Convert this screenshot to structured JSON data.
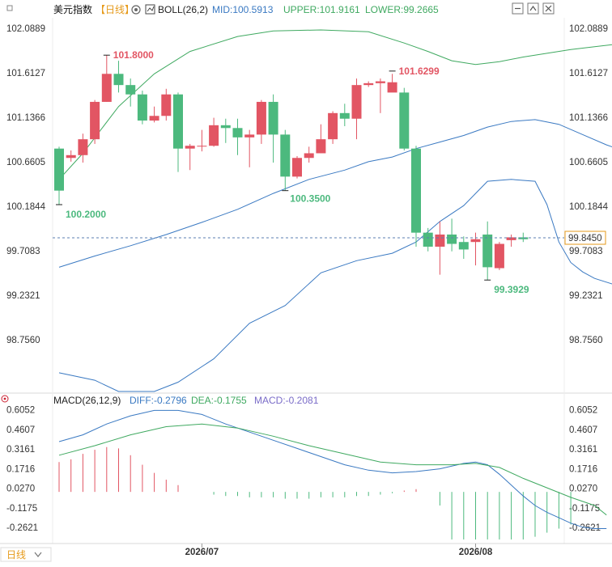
{
  "header": {
    "symbol": "美元指数",
    "period": "【日线】",
    "indicator": "BOLL(26,2)",
    "mid": "MID:100.5913",
    "upper": "UPPER:101.9161",
    "lower": "LOWER:99.2665"
  },
  "macd_header": {
    "indicator": "MACD(26,12,9)",
    "diff": "DIFF:-0.2796",
    "dea": "DEA:-0.1755",
    "macd": "MACD:-0.2081"
  },
  "current_price": "99.8450",
  "period_button": "日线",
  "colors": {
    "up": "#e25563",
    "down": "#4cb97e",
    "boll": "#3a79c2",
    "boll_band": "#3fa960",
    "diff": "#3a79c2",
    "dea": "#3fa960"
  },
  "chart_data": [
    {
      "type": "candlestick",
      "y_ticks": [
        "102.0889",
        "101.6127",
        "101.1366",
        "100.6605",
        "100.1844",
        "99.7083",
        "99.2321",
        "98.7560"
      ],
      "ylim": [
        98.2,
        102.2
      ],
      "annotations": [
        {
          "label": "101.8000",
          "value": 101.8
        },
        {
          "label": "100.2000",
          "value": 100.2
        },
        {
          "label": "100.3500",
          "value": 100.35
        },
        {
          "label": "101.6299",
          "value": 101.6299
        },
        {
          "label": "99.3929",
          "value": 99.3929
        }
      ],
      "candles": [
        [
          100.8,
          100.35,
          100.82,
          100.2
        ],
        [
          100.7,
          100.73,
          100.78,
          100.66
        ],
        [
          100.73,
          100.9,
          100.96,
          100.65
        ],
        [
          100.9,
          101.3,
          101.32,
          100.85
        ],
        [
          101.3,
          101.6,
          101.8,
          101.3
        ],
        [
          101.6,
          101.48,
          101.74,
          101.4
        ],
        [
          101.48,
          101.38,
          101.55,
          101.25
        ],
        [
          101.38,
          101.1,
          101.42,
          101.06
        ],
        [
          101.1,
          101.15,
          101.25,
          101.08
        ],
        [
          101.15,
          101.38,
          101.44,
          101.1
        ],
        [
          101.38,
          100.8,
          101.4,
          100.55
        ],
        [
          100.8,
          100.83,
          100.85,
          100.57
        ],
        [
          100.83,
          100.83,
          101.0,
          100.77
        ],
        [
          100.83,
          101.05,
          101.13,
          100.82
        ],
        [
          101.05,
          101.02,
          101.12,
          100.86
        ],
        [
          101.02,
          100.92,
          101.12,
          100.73
        ],
        [
          100.92,
          100.95,
          101.0,
          100.6
        ],
        [
          100.95,
          101.3,
          101.32,
          100.85
        ],
        [
          101.3,
          100.95,
          101.38,
          100.65
        ],
        [
          100.95,
          100.5,
          101.0,
          100.35
        ],
        [
          100.5,
          100.7,
          100.72,
          100.48
        ],
        [
          100.7,
          100.75,
          100.82,
          100.65
        ],
        [
          100.75,
          100.9,
          101.06,
          100.75
        ],
        [
          100.9,
          101.18,
          101.2,
          100.85
        ],
        [
          101.18,
          101.12,
          101.28,
          101.04
        ],
        [
          101.12,
          101.48,
          101.55,
          100.9
        ],
        [
          101.48,
          101.5,
          101.52,
          101.46
        ],
        [
          101.5,
          101.52,
          101.55,
          101.18
        ],
        [
          101.4,
          101.51,
          101.6,
          101.45
        ],
        [
          101.4,
          100.8,
          101.45,
          100.78
        ],
        [
          100.8,
          99.9,
          100.83,
          99.75
        ],
        [
          99.9,
          99.75,
          99.95,
          99.7
        ],
        [
          99.75,
          99.88,
          100.02,
          99.45
        ],
        [
          99.88,
          99.78,
          100.05,
          99.7
        ],
        [
          99.8,
          99.72,
          99.86,
          99.62
        ],
        [
          99.8,
          99.83,
          99.9,
          99.55
        ],
        [
          99.88,
          99.53,
          100.02,
          99.39
        ],
        [
          99.52,
          99.78,
          99.8,
          99.5
        ],
        [
          99.82,
          99.85,
          99.88,
          99.75
        ],
        [
          99.85,
          99.83,
          99.9,
          99.8
        ]
      ],
      "boll_mid": [
        [
          0,
          99.53
        ],
        [
          3,
          99.65
        ],
        [
          6,
          99.76
        ],
        [
          9,
          99.88
        ],
        [
          12,
          100.01
        ],
        [
          15,
          100.15
        ],
        [
          18,
          100.32
        ],
        [
          21,
          100.47
        ],
        [
          24,
          100.57
        ],
        [
          26,
          100.66
        ],
        [
          28,
          100.71
        ],
        [
          30,
          100.8
        ],
        [
          32,
          100.87
        ],
        [
          34,
          100.94
        ],
        [
          36,
          101.03
        ],
        [
          38,
          101.09
        ],
        [
          40,
          101.11
        ],
        [
          42,
          101.06
        ],
        [
          44,
          100.95
        ],
        [
          46,
          100.84
        ],
        [
          48,
          100.75
        ],
        [
          50,
          100.66
        ],
        [
          52,
          100.58
        ]
      ],
      "boll_upper": [
        [
          0,
          100.47
        ],
        [
          2,
          100.75
        ],
        [
          5,
          101.25
        ],
        [
          8,
          101.6
        ],
        [
          11,
          101.84
        ],
        [
          15,
          102.0
        ],
        [
          18,
          102.06
        ],
        [
          22,
          102.07
        ],
        [
          26,
          102.05
        ],
        [
          29,
          101.93
        ],
        [
          31,
          101.84
        ],
        [
          33,
          101.74
        ],
        [
          35,
          101.7
        ],
        [
          37,
          101.73
        ],
        [
          39,
          101.78
        ],
        [
          41,
          101.82
        ],
        [
          43,
          101.86
        ],
        [
          45,
          101.89
        ],
        [
          47,
          101.92
        ],
        [
          49,
          101.94
        ],
        [
          51,
          101.95
        ],
        [
          53,
          101.91
        ]
      ],
      "boll_lower": [
        [
          0,
          98.4
        ],
        [
          3,
          98.32
        ],
        [
          5,
          98.2
        ],
        [
          8,
          98.2
        ],
        [
          10,
          98.3
        ],
        [
          13,
          98.55
        ],
        [
          16,
          98.93
        ],
        [
          19,
          99.12
        ],
        [
          22,
          99.47
        ],
        [
          25,
          99.6
        ],
        [
          28,
          99.68
        ],
        [
          30,
          99.8
        ],
        [
          32,
          100.02
        ],
        [
          34,
          100.19
        ],
        [
          36,
          100.45
        ],
        [
          38,
          100.47
        ],
        [
          40,
          100.45
        ],
        [
          41,
          100.2
        ],
        [
          42,
          99.8
        ],
        [
          43,
          99.58
        ],
        [
          44,
          99.48
        ],
        [
          45,
          99.41
        ],
        [
          47,
          99.33
        ],
        [
          49,
          99.27
        ]
      ]
    },
    {
      "type": "macd",
      "y_ticks": [
        "0.6052",
        "0.4607",
        "0.3161",
        "0.1716",
        "0.0270",
        "-0.1175",
        "-0.2621"
      ],
      "ylim": [
        -0.38,
        0.62
      ],
      "x_ticks": [
        "2026/07",
        "2026/08"
      ],
      "hist": [
        0.22,
        0.24,
        0.28,
        0.31,
        0.33,
        0.32,
        0.27,
        0.2,
        0.14,
        0.09,
        0.05,
        0,
        0,
        -0.02,
        -0.03,
        -0.03,
        -0.04,
        -0.04,
        -0.04,
        -0.05,
        -0.05,
        -0.05,
        -0.04,
        -0.04,
        -0.04,
        -0.03,
        -0.03,
        -0.02,
        -0.01,
        0.01,
        0.02,
        0,
        -0.1,
        -0.35,
        -0.35,
        -0.35,
        -0.35,
        -0.35,
        -0.35,
        -0.35,
        -0.33,
        -0.3,
        -0.27,
        -0.24
      ],
      "diff": [
        [
          0,
          0.37
        ],
        [
          2,
          0.42
        ],
        [
          4,
          0.5
        ],
        [
          6,
          0.56
        ],
        [
          8,
          0.6
        ],
        [
          10,
          0.6
        ],
        [
          12,
          0.57
        ],
        [
          14,
          0.5
        ],
        [
          16,
          0.44
        ],
        [
          18,
          0.38
        ],
        [
          20,
          0.32
        ],
        [
          22,
          0.26
        ],
        [
          24,
          0.2
        ],
        [
          26,
          0.16
        ],
        [
          28,
          0.14
        ],
        [
          30,
          0.15
        ],
        [
          32,
          0.17
        ],
        [
          34,
          0.21
        ],
        [
          35,
          0.22
        ],
        [
          36,
          0.2
        ],
        [
          37,
          0.13
        ],
        [
          38,
          0.05
        ],
        [
          39,
          -0.03
        ],
        [
          40,
          -0.1
        ],
        [
          41,
          -0.15
        ],
        [
          42,
          -0.19
        ],
        [
          43,
          -0.23
        ],
        [
          44,
          -0.26
        ],
        [
          45,
          -0.27
        ],
        [
          46,
          -0.27
        ]
      ],
      "dea": [
        [
          0,
          0.27
        ],
        [
          3,
          0.34
        ],
        [
          6,
          0.42
        ],
        [
          9,
          0.48
        ],
        [
          12,
          0.5
        ],
        [
          15,
          0.47
        ],
        [
          18,
          0.41
        ],
        [
          21,
          0.34
        ],
        [
          24,
          0.28
        ],
        [
          27,
          0.22
        ],
        [
          30,
          0.2
        ],
        [
          33,
          0.2
        ],
        [
          35,
          0.21
        ],
        [
          37,
          0.18
        ],
        [
          39,
          0.1
        ],
        [
          41,
          0.03
        ],
        [
          43,
          -0.04
        ],
        [
          45,
          -0.1
        ],
        [
          46,
          -0.17
        ]
      ]
    }
  ]
}
